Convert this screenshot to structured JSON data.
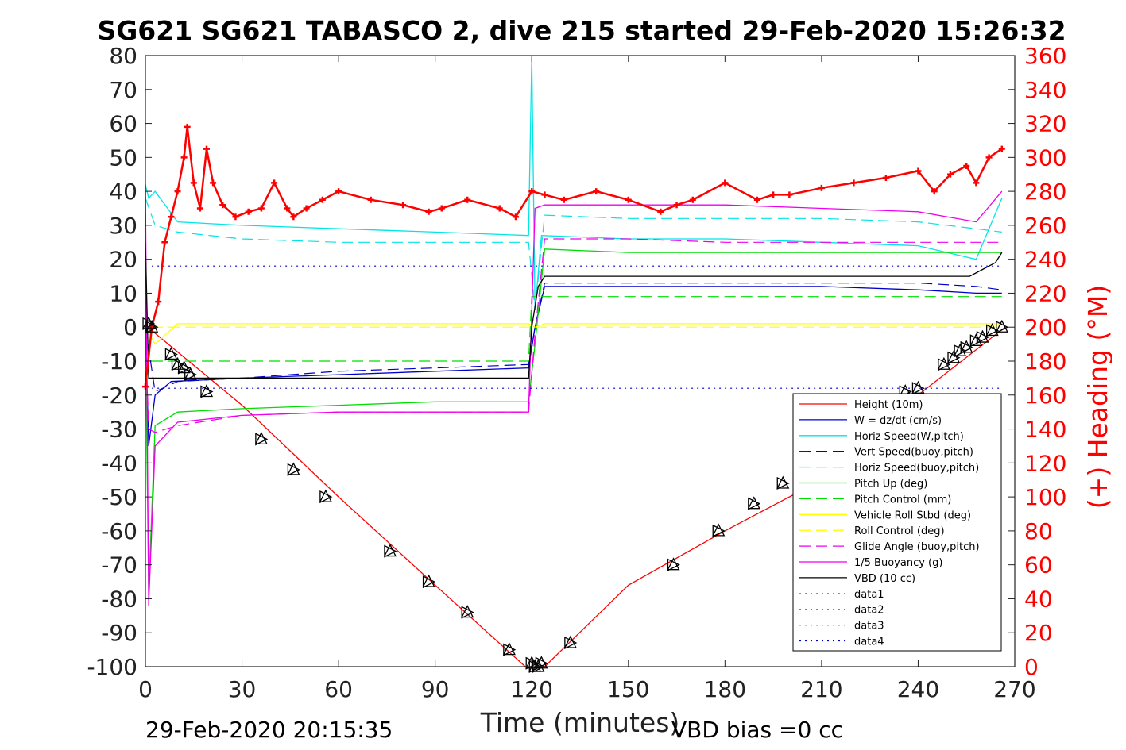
{
  "chart_data": {
    "type": "line",
    "title": "SG621 SG621 TABASCO 2, dive 215 started 29-Feb-2020 15:26:32",
    "xlabel": "Time (minutes)",
    "ylabel": "",
    "y2label": "(+) Heading (°M)",
    "footer_left": "29-Feb-2020 20:15:35",
    "footer_right": "VBD bias =0 cc",
    "xlim": [
      0,
      270
    ],
    "ylim": [
      -100,
      80
    ],
    "y2lim": [
      0,
      360
    ],
    "xticks": [
      0,
      30,
      60,
      90,
      120,
      150,
      180,
      210,
      240,
      270
    ],
    "yticks": [
      -100,
      -90,
      -80,
      -70,
      -60,
      -50,
      -40,
      -30,
      -20,
      -10,
      0,
      10,
      20,
      30,
      40,
      50,
      60,
      70,
      80
    ],
    "y2ticks": [
      0,
      20,
      40,
      60,
      80,
      100,
      120,
      140,
      160,
      180,
      200,
      220,
      240,
      260,
      280,
      300,
      320,
      340,
      360
    ],
    "grid": false,
    "legend_position": "bottom-right",
    "colors": {
      "heading_axis": "#ff0000"
    },
    "series": [
      {
        "name": "Height (10m)",
        "color": "#ff0000",
        "style": "solid",
        "x": [
          0,
          2,
          30,
          60,
          90,
          118,
          120,
          122,
          124,
          150,
          180,
          210,
          240,
          267
        ],
        "y": [
          0,
          -1,
          -23,
          -50,
          -76,
          -100,
          -100,
          -100,
          -100,
          -76,
          -60,
          -45,
          -20,
          0
        ]
      },
      {
        "name": "W = dz/dt (cm/s)",
        "color": "#0000cc",
        "style": "solid",
        "x": [
          0,
          1,
          3,
          8,
          30,
          60,
          90,
          119,
          121,
          124,
          150,
          180,
          210,
          240,
          258,
          266
        ],
        "y": [
          0,
          -35,
          -20,
          -16,
          -15,
          -14,
          -13,
          -12,
          0,
          12,
          12,
          12,
          12,
          11,
          10,
          10
        ]
      },
      {
        "name": "Horiz Speed(W,pitch)",
        "color": "#00e5e5",
        "style": "solid",
        "x": [
          0,
          1,
          3,
          10,
          30,
          60,
          90,
          119,
          120,
          121,
          123,
          150,
          180,
          210,
          240,
          258,
          266
        ],
        "y": [
          42,
          38,
          40,
          31,
          30,
          29,
          28,
          27,
          80,
          5,
          27,
          26,
          26,
          25,
          24,
          20,
          38
        ]
      },
      {
        "name": "Vert Speed(buoy,pitch)",
        "color": "#0000cc",
        "style": "dashed",
        "x": [
          0,
          3,
          10,
          30,
          60,
          90,
          119,
          121,
          124,
          150,
          180,
          210,
          240,
          258,
          266
        ],
        "y": [
          0,
          -19,
          -16,
          -15,
          -13,
          -12,
          -11,
          0,
          13,
          13,
          13,
          13,
          13,
          12,
          11
        ]
      },
      {
        "name": "Horiz Speed(buoy,pitch)",
        "color": "#00e5e5",
        "style": "dashed",
        "x": [
          0,
          3,
          10,
          30,
          60,
          90,
          119,
          121,
          124,
          150,
          180,
          210,
          240,
          258,
          266
        ],
        "y": [
          38,
          30,
          28,
          26,
          25,
          25,
          25,
          5,
          33,
          32,
          32,
          32,
          31,
          29,
          28
        ]
      },
      {
        "name": "Pitch Up (deg)",
        "color": "#00dd00",
        "style": "solid",
        "x": [
          0,
          1,
          3,
          10,
          30,
          60,
          90,
          119,
          121,
          124,
          150,
          180,
          210,
          240,
          258,
          266
        ],
        "y": [
          0,
          -78,
          -29,
          -25,
          -24,
          -23,
          -22,
          -22,
          -5,
          23,
          22,
          22,
          22,
          22,
          22,
          22
        ]
      },
      {
        "name": "Pitch Control (mm)",
        "color": "#00dd00",
        "style": "dashed",
        "x": [
          2,
          119,
          120,
          266
        ],
        "y": [
          -10,
          -10,
          9,
          9
        ]
      },
      {
        "name": "Vehicle Roll Stbd (deg)",
        "color": "#ffff00",
        "style": "solid",
        "x": [
          0,
          3,
          10,
          30,
          60,
          90,
          119,
          121,
          124,
          150,
          180,
          210,
          240,
          258,
          266
        ],
        "y": [
          0,
          -5,
          1,
          1,
          1,
          1,
          1,
          0,
          1,
          1,
          1,
          1,
          1,
          1,
          1
        ]
      },
      {
        "name": "Roll Control (deg)",
        "color": "#ffff00",
        "style": "dashed",
        "x": [
          2,
          119,
          120,
          266
        ],
        "y": [
          0,
          0,
          0,
          0
        ]
      },
      {
        "name": "Glide Angle (buoy,pitch)",
        "color": "#ee00ee",
        "style": "dashed",
        "x": [
          0,
          1,
          3,
          10,
          30,
          60,
          90,
          119,
          121,
          124,
          150,
          180,
          210,
          240,
          258,
          266
        ],
        "y": [
          0,
          -30,
          -31,
          -29,
          -26,
          -25,
          -25,
          -25,
          -2,
          26,
          26,
          25,
          25,
          25,
          25,
          25
        ]
      },
      {
        "name": "1/5 Buoyancy (g)",
        "color": "#ee00ee",
        "style": "solid",
        "x": [
          0,
          1,
          3,
          10,
          30,
          60,
          90,
          119,
          121,
          124,
          150,
          180,
          210,
          240,
          258,
          266
        ],
        "y": [
          42,
          -82,
          -35,
          -28,
          -26,
          -25,
          -25,
          -25,
          35,
          36,
          36,
          36,
          35,
          34,
          31,
          40
        ]
      },
      {
        "name": "VBD (10 cc)",
        "color": "#000000",
        "style": "solid",
        "x": [
          0,
          1,
          3,
          119,
          120,
          122,
          124,
          240,
          256,
          260,
          264,
          266
        ],
        "y": [
          25,
          -15,
          -15,
          -15,
          0,
          12,
          15,
          15,
          15,
          17,
          19,
          22
        ]
      },
      {
        "name": "data1",
        "color": "#00dd00",
        "style": "dotted",
        "x": [],
        "y": []
      },
      {
        "name": "data2",
        "color": "#00dd00",
        "style": "dotted",
        "x": [],
        "y": []
      },
      {
        "name": "data3",
        "color": "#0000cc",
        "style": "dotted",
        "x": [
          2,
          266
        ],
        "y": [
          18,
          18
        ]
      },
      {
        "name": "data4",
        "color": "#0000cc",
        "style": "dotted",
        "x": [
          2,
          266
        ],
        "y": [
          -18,
          -18
        ]
      }
    ],
    "heading": {
      "axis": "right",
      "color": "#ff0000",
      "marker": "+",
      "x": [
        0,
        2,
        4,
        6,
        8,
        10,
        12,
        13,
        15,
        17,
        19,
        21,
        24,
        28,
        32,
        36,
        40,
        44,
        46,
        50,
        55,
        60,
        70,
        80,
        88,
        92,
        100,
        110,
        115,
        120,
        124,
        130,
        140,
        150,
        160,
        165,
        170,
        180,
        190,
        195,
        200,
        210,
        220,
        230,
        240,
        245,
        250,
        255,
        258,
        262,
        266
      ],
      "y": [
        165,
        200,
        215,
        250,
        265,
        280,
        300,
        318,
        285,
        270,
        305,
        285,
        272,
        265,
        268,
        270,
        285,
        270,
        265,
        270,
        275,
        280,
        275,
        272,
        268,
        270,
        275,
        270,
        265,
        280,
        278,
        275,
        280,
        275,
        268,
        272,
        275,
        285,
        275,
        278,
        278,
        282,
        285,
        288,
        292,
        280,
        290,
        295,
        285,
        300,
        305
      ]
    },
    "triangles": {
      "marker": "triangle",
      "x": [
        1,
        2,
        8,
        10,
        12,
        14,
        19,
        36,
        46,
        56,
        76,
        88,
        100,
        113,
        120,
        121,
        122,
        123,
        132,
        164,
        178,
        189,
        198,
        236,
        240,
        248,
        251,
        253,
        255,
        258,
        260,
        263,
        266
      ],
      "y": [
        1,
        0,
        -8,
        -11,
        -12,
        -14,
        -19,
        -33,
        -42,
        -50,
        -66,
        -75,
        -84,
        -95,
        -99,
        -100,
        -100,
        -99,
        -93,
        -70,
        -60,
        -52,
        -46,
        -19,
        -18,
        -11,
        -9,
        -7,
        -6,
        -4,
        -3,
        -1,
        0
      ]
    }
  }
}
